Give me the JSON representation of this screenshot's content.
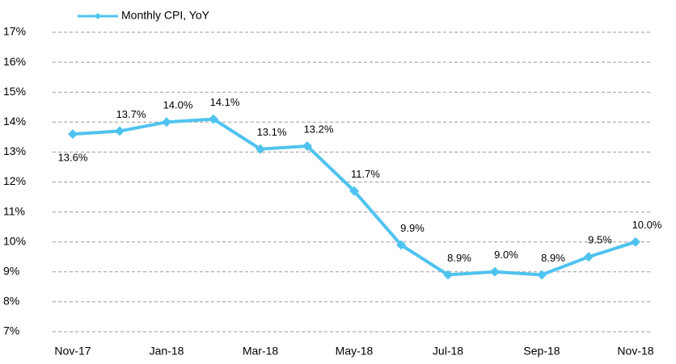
{
  "chart_data": {
    "type": "line",
    "categories": [
      "Nov-17",
      null,
      "Jan-18",
      null,
      "Mar-18",
      null,
      "May-18",
      null,
      "Jul-18",
      null,
      "Sep-18",
      null,
      "Nov-18"
    ],
    "series": [
      {
        "name": "Monthly CPI, YoY",
        "color": "#4fc3ef",
        "values": [
          13.6,
          13.7,
          14.0,
          14.1,
          13.1,
          13.2,
          11.7,
          9.9,
          8.9,
          9.0,
          8.9,
          9.5,
          10.0
        ],
        "value_labels": [
          "13.6%",
          "13.7%",
          "14.0%",
          "14.1%",
          "13.1%",
          "13.2%",
          "11.7%",
          "9.9%",
          "8.9%",
          "9.0%",
          "8.9%",
          "9.5%",
          "10.0%"
        ]
      }
    ],
    "ylim": [
      7,
      17
    ],
    "yticks": [
      {
        "value": 7,
        "label": "7%"
      },
      {
        "value": 8,
        "label": "8%"
      },
      {
        "value": 9,
        "label": "9%"
      },
      {
        "value": 10,
        "label": "10%"
      },
      {
        "value": 11,
        "label": "11%"
      },
      {
        "value": 12,
        "label": "12%"
      },
      {
        "value": 13,
        "label": "13%"
      },
      {
        "value": 14,
        "label": "14%"
      },
      {
        "value": 15,
        "label": "15%"
      },
      {
        "value": 16,
        "label": "16%"
      },
      {
        "value": 17,
        "label": "17%"
      }
    ],
    "grid": true,
    "legend": "top-left"
  }
}
